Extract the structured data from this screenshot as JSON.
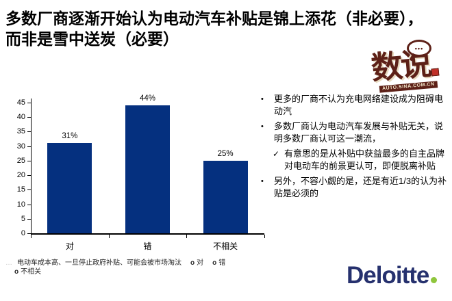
{
  "title": {
    "line1": "多数厂商逐渐开始认为电动汽车补贴是锦上添花（非必要），",
    "line2": "而非是雪中送炭（必要）"
  },
  "badge": {
    "bubble_dots": "•••",
    "text": "数说",
    "subtext": "AUTO.SINA.COM.CN",
    "color": "#5d2017"
  },
  "chart_data": {
    "type": "bar",
    "categories": [
      "对",
      "错",
      "不相关"
    ],
    "values": [
      31,
      44,
      25
    ],
    "value_labels": [
      "31%",
      "44%",
      "25%"
    ],
    "title": "",
    "xlabel": "",
    "ylabel": "",
    "ylim": [
      0,
      45
    ],
    "yticks": [
      0,
      5,
      10,
      15,
      20,
      25,
      30,
      35,
      40,
      45
    ],
    "grid": false,
    "legend_position": "none",
    "bar_color": "#05307f"
  },
  "bullets": [
    {
      "level": 1,
      "marker": "•",
      "text": "更多的厂商不认为充电网络建设成为阻碍电动汽"
    },
    {
      "level": 1,
      "marker": "•",
      "text": "多数厂商认为电动汽车发展与补贴无关，说明多数厂商认可这一潮流，"
    },
    {
      "level": 2,
      "marker": "✓",
      "text": "有意思的是从补贴中获益最多的自主品牌对电动车的前景更认可，即便脱离补贴"
    },
    {
      "level": 1,
      "marker": "•",
      "text": "另外，不容小觑的是，还是有近1/3的认为补贴是必须的"
    }
  ],
  "footnote": {
    "prefix": "…",
    "question": "电动车成本高、一旦停止政府补贴、可能会被市场淘汰",
    "option_marker": "o",
    "options": [
      "对",
      "错",
      "不相关"
    ]
  },
  "brand": {
    "name": "Deloitte",
    "navy": "#26316e",
    "green": "#8fc63d"
  }
}
